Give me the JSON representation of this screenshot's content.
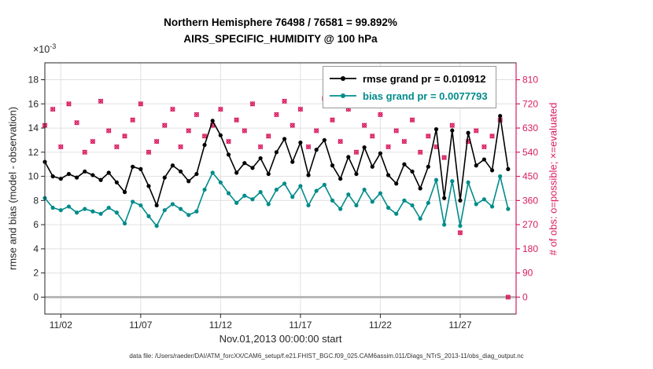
{
  "footer": "data file: /Users/raeder/DAI/ATM_forcXX/CAM6_setup/f.e21.FHIST_BGC.f09_025.CAM6assim.011/Diags_NTrS_2013-11/obs_diag_output.nc",
  "chart_data": {
    "type": "line",
    "title": "Northern Hemisphere 76498 / 76581 = 99.892%",
    "subtitle": "AIRS_SPECIFIC_HUMIDITY @ 100 hPa",
    "xlabel": "Nov.01,2013 00:00:00 start",
    "ylabel_left": "rmse and bias (model - observation)",
    "ylabel_right": "# of obs: o=possible; ×=evaluated",
    "offset": {
      "base": "×10",
      "exp": "-3"
    },
    "grid": true,
    "legend_position": "top-center-inside",
    "xlim": [
      1,
      30.5
    ],
    "ylim_left": [
      -1.4,
      19.4
    ],
    "ylim_right": [
      -63,
      873
    ],
    "yticks_left": [
      0,
      2,
      4,
      6,
      8,
      10,
      12,
      14,
      16,
      18
    ],
    "yticks_right": [
      0,
      90,
      180,
      270,
      360,
      450,
      540,
      630,
      720,
      810
    ],
    "xticks": [
      {
        "day": 2,
        "label": "11/02"
      },
      {
        "day": 7,
        "label": "11/07"
      },
      {
        "day": 12,
        "label": "11/12"
      },
      {
        "day": 17,
        "label": "11/17"
      },
      {
        "day": 22,
        "label": "11/22"
      },
      {
        "day": 27,
        "label": "11/27"
      }
    ],
    "colors": {
      "rmse": "#000000",
      "bias": "#008b8b",
      "obs": "#d81b60",
      "zero_line": "#b8b8b8",
      "grid": "#e0e0e0",
      "axis": "#262626"
    },
    "legend": [
      {
        "name": "rmse",
        "label": "rmse grand pr = 0.010912",
        "color": "#000000"
      },
      {
        "name": "bias",
        "label": "bias grand pr = 0.0077793",
        "color": "#008b8b"
      }
    ],
    "x_days": [
      1,
      1.5,
      2,
      2.5,
      3,
      3.5,
      4,
      4.5,
      5,
      5.5,
      6,
      6.5,
      7,
      7.5,
      8,
      8.5,
      9,
      9.5,
      10,
      10.5,
      11,
      11.5,
      12,
      12.5,
      13,
      13.5,
      14,
      14.5,
      15,
      15.5,
      16,
      16.5,
      17,
      17.5,
      18,
      18.5,
      19,
      19.5,
      20,
      20.5,
      21,
      21.5,
      22,
      22.5,
      23,
      23.5,
      24,
      24.5,
      25,
      25.5,
      26,
      26.5,
      27,
      27.5,
      28,
      28.5,
      29,
      29.5,
      30
    ],
    "series": [
      {
        "name": "rmse",
        "axis": "left",
        "unit_scale": "1e-3",
        "values": [
          11.2,
          10.0,
          9.8,
          10.2,
          9.9,
          10.4,
          10.1,
          9.7,
          10.3,
          9.5,
          8.7,
          10.8,
          10.6,
          9.2,
          7.6,
          9.9,
          10.9,
          10.4,
          9.6,
          10.2,
          12.6,
          14.6,
          13.4,
          11.8,
          10.3,
          11.1,
          10.7,
          11.5,
          10.2,
          12.0,
          13.1,
          11.2,
          12.8,
          10.1,
          12.2,
          13.0,
          10.9,
          9.8,
          11.6,
          10.2,
          12.4,
          10.8,
          11.9,
          10.1,
          9.4,
          11.0,
          10.4,
          9.0,
          10.8,
          13.9,
          8.2,
          13.8,
          8.0,
          13.6,
          10.9,
          11.4,
          10.5,
          15.0,
          10.6
        ]
      },
      {
        "name": "bias",
        "axis": "left",
        "unit_scale": "1e-3",
        "values": [
          8.2,
          7.4,
          7.2,
          7.5,
          7.0,
          7.3,
          7.1,
          6.9,
          7.4,
          7.0,
          6.1,
          7.9,
          7.6,
          6.7,
          5.9,
          7.2,
          7.7,
          7.3,
          6.8,
          7.1,
          8.9,
          10.3,
          9.5,
          8.6,
          7.8,
          8.4,
          8.1,
          8.7,
          7.7,
          8.9,
          9.4,
          8.3,
          9.2,
          7.6,
          8.8,
          9.3,
          8.0,
          7.3,
          8.5,
          7.6,
          8.9,
          7.9,
          8.6,
          7.4,
          6.9,
          8.0,
          7.6,
          6.5,
          7.8,
          9.7,
          6.0,
          9.6,
          5.9,
          9.5,
          7.7,
          8.1,
          7.5,
          10.0,
          7.3
        ]
      },
      {
        "name": "num_obs",
        "axis": "right",
        "values": [
          640,
          700,
          560,
          720,
          650,
          540,
          580,
          730,
          620,
          560,
          600,
          660,
          720,
          540,
          580,
          640,
          700,
          560,
          620,
          680,
          600,
          640,
          700,
          580,
          660,
          620,
          720,
          560,
          600,
          680,
          730,
          640,
          700,
          560,
          620,
          740,
          660,
          580,
          700,
          540,
          640,
          600,
          680,
          560,
          620,
          580,
          660,
          540,
          600,
          560,
          520,
          640,
          240,
          580,
          620,
          560,
          600,
          660,
          0
        ]
      }
    ]
  }
}
